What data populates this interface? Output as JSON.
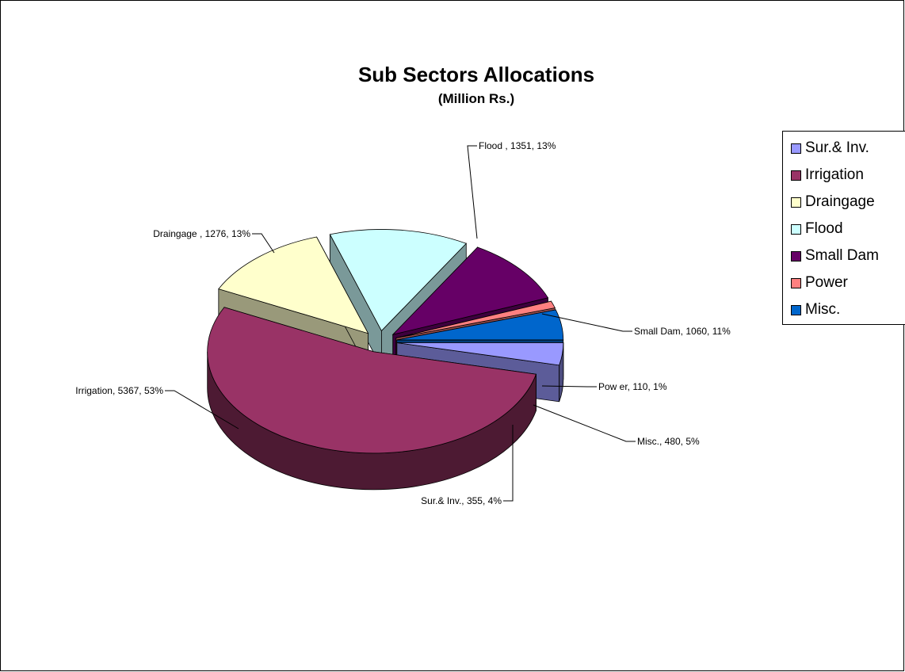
{
  "chart_data": {
    "type": "pie",
    "title": "Sub Sectors Allocations",
    "subtitle": "(Million Rs.)",
    "legend_position": "right",
    "slices": [
      {
        "name": "Sur.& Inv.",
        "value": 355,
        "percent": "4%",
        "label": "Sur.& Inv., 355, 4%",
        "color": "#9999ff"
      },
      {
        "name": "Irrigation",
        "value": 5367,
        "percent": "53%",
        "label": "Irrigation, 5367, 53%",
        "color": "#993366"
      },
      {
        "name": "Draingage",
        "value": 1276,
        "percent": "13%",
        "label": "Draingage , 1276, 13%",
        "color": "#ffffcc"
      },
      {
        "name": "Flood",
        "value": 1351,
        "percent": "13%",
        "label": "Flood , 1351, 13%",
        "color": "#ccffff"
      },
      {
        "name": "Small Dam",
        "value": 1060,
        "percent": "11%",
        "label": "Small Dam, 1060, 11%",
        "color": "#660066"
      },
      {
        "name": "Power",
        "value": 110,
        "percent": "1%",
        "label": "Pow er, 110, 1%",
        "color": "#ff8080"
      },
      {
        "name": "Misc.",
        "value": 480,
        "percent": "5%",
        "label": "Misc., 480, 5%",
        "color": "#0066cc"
      }
    ]
  }
}
